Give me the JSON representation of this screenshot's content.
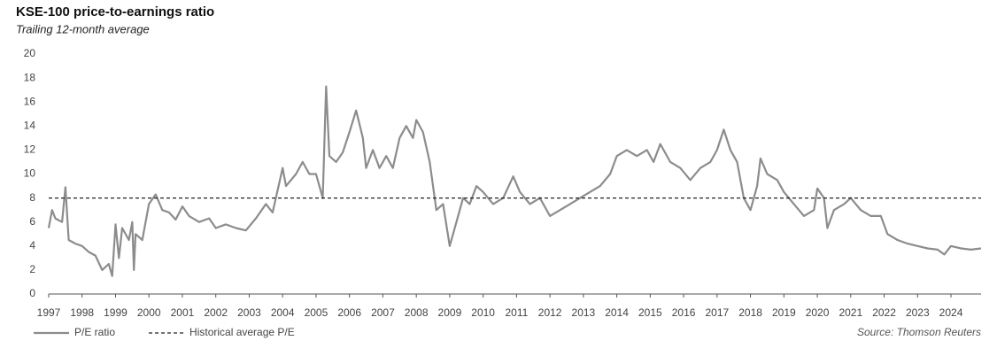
{
  "chart_data": {
    "type": "line",
    "title": "KSE-100 price-to-earnings ratio",
    "subtitle": "Trailing 12-month average",
    "source": "Source: Thomson Reuters",
    "xlim": [
      1997,
      2024.9
    ],
    "xticks": [
      1997,
      1998,
      1999,
      2000,
      2001,
      2002,
      2003,
      2004,
      2005,
      2006,
      2007,
      2008,
      2009,
      2010,
      2011,
      2012,
      2013,
      2014,
      2015,
      2016,
      2017,
      2018,
      2019,
      2020,
      2021,
      2022,
      2023,
      2024
    ],
    "ylim": [
      0,
      20
    ],
    "yticks": [
      0,
      2,
      4,
      6,
      8,
      10,
      12,
      14,
      16,
      18,
      20
    ],
    "grid": false,
    "legend": "bottom-left",
    "series": [
      {
        "name": "P/E ratio",
        "color": "#8c8c8c",
        "dash": false,
        "x": [
          1997.0,
          1997.1,
          1997.2,
          1997.4,
          1997.5,
          1997.6,
          1997.8,
          1998.0,
          1998.2,
          1998.4,
          1998.6,
          1998.8,
          1998.9,
          1999.0,
          1999.1,
          1999.2,
          1999.4,
          1999.5,
          1999.55,
          1999.6,
          1999.8,
          2000.0,
          2000.2,
          2000.4,
          2000.6,
          2000.8,
          2001.0,
          2001.2,
          2001.5,
          2001.8,
          2002.0,
          2002.3,
          2002.6,
          2002.9,
          2003.2,
          2003.5,
          2003.7,
          2004.0,
          2004.1,
          2004.4,
          2004.6,
          2004.8,
          2005.0,
          2005.2,
          2005.3,
          2005.4,
          2005.6,
          2005.8,
          2006.0,
          2006.2,
          2006.4,
          2006.5,
          2006.7,
          2006.9,
          2007.1,
          2007.3,
          2007.5,
          2007.7,
          2007.9,
          2008.0,
          2008.2,
          2008.4,
          2008.6,
          2008.8,
          2009.0,
          2009.2,
          2009.4,
          2009.6,
          2009.8,
          2010.0,
          2010.3,
          2010.6,
          2010.9,
          2011.1,
          2011.4,
          2011.7,
          2012.0,
          2012.3,
          2012.6,
          2012.9,
          2013.2,
          2013.5,
          2013.8,
          2014.0,
          2014.3,
          2014.6,
          2014.9,
          2015.1,
          2015.3,
          2015.6,
          2015.9,
          2016.2,
          2016.5,
          2016.8,
          2017.0,
          2017.2,
          2017.4,
          2017.6,
          2017.8,
          2018.0,
          2018.2,
          2018.3,
          2018.5,
          2018.8,
          2019.0,
          2019.3,
          2019.6,
          2019.9,
          2020.0,
          2020.2,
          2020.3,
          2020.5,
          2020.8,
          2021.0,
          2021.3,
          2021.6,
          2021.9,
          2022.1,
          2022.4,
          2022.7,
          2023.0,
          2023.3,
          2023.6,
          2023.8,
          2024.0,
          2024.3,
          2024.6,
          2024.9
        ],
        "values": [
          5.5,
          7.0,
          6.3,
          6.0,
          8.9,
          4.5,
          4.2,
          4.0,
          3.5,
          3.2,
          2.0,
          2.5,
          1.5,
          5.8,
          3.0,
          5.5,
          4.5,
          6.0,
          2.0,
          5.0,
          4.5,
          7.5,
          8.3,
          7.0,
          6.8,
          6.2,
          7.3,
          6.5,
          6.0,
          6.3,
          5.5,
          5.8,
          5.5,
          5.3,
          6.3,
          7.5,
          6.8,
          10.5,
          9.0,
          10.0,
          11.0,
          10.0,
          10.0,
          8.0,
          17.3,
          11.5,
          11.0,
          11.8,
          13.5,
          15.3,
          13.0,
          10.5,
          12.0,
          10.5,
          11.5,
          10.5,
          13.0,
          14.0,
          13.0,
          14.5,
          13.5,
          11.0,
          7.0,
          7.5,
          4.0,
          6.0,
          8.0,
          7.5,
          9.0,
          8.5,
          7.5,
          8.0,
          9.8,
          8.5,
          7.5,
          8.0,
          6.5,
          7.0,
          7.5,
          8.0,
          8.5,
          9.0,
          10.0,
          11.5,
          12.0,
          11.5,
          12.0,
          11.0,
          12.5,
          11.0,
          10.5,
          9.5,
          10.5,
          11.0,
          12.0,
          13.7,
          12.0,
          11.0,
          8.0,
          7.0,
          9.0,
          11.3,
          10.0,
          9.5,
          8.5,
          7.5,
          6.5,
          7.0,
          8.8,
          8.0,
          5.5,
          7.0,
          7.5,
          8.0,
          7.0,
          6.5,
          6.5,
          5.0,
          4.5,
          4.2,
          4.0,
          3.8,
          3.7,
          3.3,
          4.0,
          3.8,
          3.7,
          3.8
        ]
      },
      {
        "name": "Historical average P/E",
        "color": "#222222",
        "dash": true,
        "x": [
          1997.0,
          2024.9
        ],
        "values": [
          8.0,
          8.0
        ]
      }
    ]
  }
}
